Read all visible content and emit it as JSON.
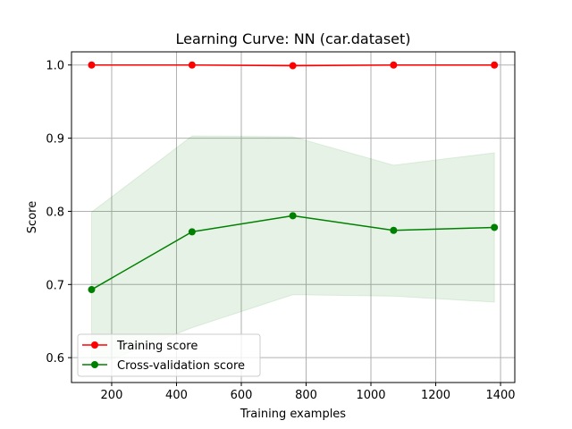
{
  "chart_data": {
    "type": "line",
    "title": "Learning Curve: NN (car.dataset)",
    "xlabel": "Training examples",
    "ylabel": "Score",
    "xlim": [
      76,
      1444
    ],
    "ylim": [
      0.566,
      1.018
    ],
    "xticks": [
      200,
      400,
      600,
      800,
      1000,
      1200,
      1400
    ],
    "yticks": [
      0.6,
      0.7,
      0.8,
      0.9,
      1.0
    ],
    "xtick_labels": [
      "200",
      "400",
      "600",
      "800",
      "1000",
      "1200",
      "1400"
    ],
    "ytick_labels": [
      "0.6",
      "0.7",
      "0.8",
      "0.9",
      "1.0"
    ],
    "grid": true,
    "legend_position": "lower-left",
    "x": [
      138,
      448,
      759,
      1070,
      1381
    ],
    "series": [
      {
        "name": "Training score",
        "color": "#ff0000",
        "marker": "circle",
        "values": [
          1.0,
          1.0,
          0.999,
          1.0,
          1.0
        ],
        "band_lower": [
          1.0,
          1.0,
          0.998,
          0.999,
          0.999
        ],
        "band_upper": [
          1.0,
          1.0,
          1.0,
          1.0,
          1.0
        ]
      },
      {
        "name": "Cross-validation score",
        "color": "#008000",
        "marker": "circle",
        "values": [
          0.693,
          0.772,
          0.794,
          0.774,
          0.778
        ],
        "band_lower": [
          0.587,
          0.641,
          0.686,
          0.684,
          0.676
        ],
        "band_upper": [
          0.799,
          0.903,
          0.902,
          0.863,
          0.88
        ]
      }
    ]
  }
}
